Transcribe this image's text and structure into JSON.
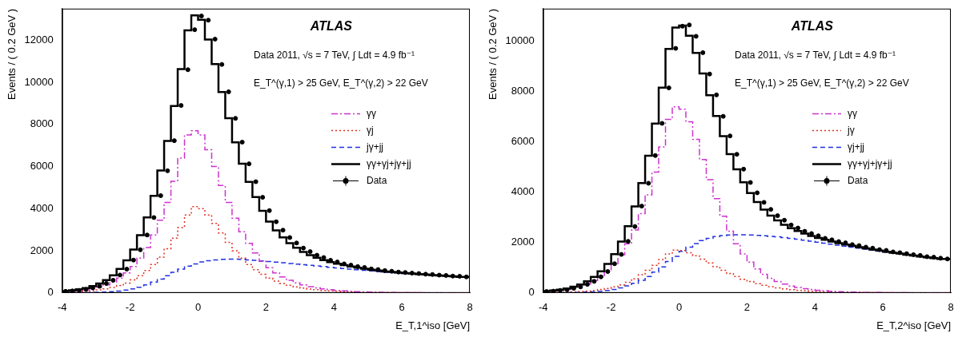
{
  "chart_data": [
    {
      "type": "histogram",
      "annotations": [
        "ATLAS",
        "Data 2011, √s = 7 TeV, ∫ Ldt = 4.9 fb⁻¹",
        "E_T^(γ,1) > 25 GeV, E_T^(γ,2) > 22 GeV"
      ],
      "x_label": "E_T,1^iso [GeV]",
      "y_label": "Events / ( 0.2 GeV )",
      "bins": [
        -4,
        -3.8,
        -3.6,
        -3.4,
        -3.2,
        -3,
        -2.8,
        -2.6,
        -2.4,
        -2.2,
        -2,
        -1.8,
        -1.6,
        -1.4,
        -1.2,
        -1,
        -0.8,
        -0.6,
        -0.4,
        -0.2,
        0,
        0.2,
        0.4,
        0.6,
        0.8,
        1,
        1.2,
        1.4,
        1.6,
        1.8,
        2,
        2.2,
        2.4,
        2.6,
        2.8,
        3,
        3.2,
        3.4,
        3.6,
        3.8,
        4,
        4.2,
        4.4,
        4.6,
        4.8,
        5,
        5.2,
        5.4,
        5.6,
        5.8,
        6,
        6.2,
        6.4,
        6.6,
        6.8,
        7,
        7.2,
        7.4,
        7.6,
        7.8,
        8
      ],
      "series": [
        {
          "name": "γγ",
          "color": "#cc33cc",
          "type": "step",
          "line_style": "dashdot",
          "values": [
            40,
            55,
            75,
            105,
            145,
            200,
            275,
            380,
            520,
            700,
            950,
            1250,
            1650,
            2150,
            2750,
            3450,
            4300,
            5300,
            6400,
            7500,
            7700,
            7500,
            6800,
            6000,
            5100,
            4300,
            3550,
            2900,
            2350,
            1900,
            1500,
            1200,
            950,
            760,
            600,
            480,
            380,
            300,
            240,
            190,
            150,
            120,
            95,
            75,
            60,
            48,
            38,
            30,
            24,
            19,
            15,
            12,
            10,
            8,
            6,
            5,
            4,
            3,
            3,
            2
          ]
        },
        {
          "name": "γj",
          "color": "#e03020",
          "type": "step",
          "line_style": "dotted",
          "values": [
            25,
            30,
            40,
            55,
            75,
            100,
            140,
            190,
            260,
            350,
            470,
            620,
            820,
            1060,
            1350,
            1700,
            2100,
            2600,
            3100,
            3700,
            4100,
            4000,
            3700,
            3300,
            2850,
            2400,
            2000,
            1650,
            1350,
            1100,
            880,
            700,
            560,
            450,
            360,
            290,
            230,
            185,
            150,
            120,
            95,
            78,
            63,
            50,
            40,
            32,
            26,
            21,
            17,
            14,
            11,
            9,
            7,
            6,
            5,
            4,
            3,
            3,
            2,
            2
          ]
        },
        {
          "name": "jγ+jj",
          "color": "#2030e0",
          "type": "step",
          "line_style": "dashed",
          "values": [
            5,
            6,
            8,
            10,
            14,
            20,
            28,
            40,
            60,
            90,
            130,
            190,
            270,
            380,
            510,
            660,
            820,
            980,
            1130,
            1270,
            1380,
            1470,
            1530,
            1570,
            1590,
            1600,
            1600,
            1590,
            1570,
            1550,
            1520,
            1490,
            1460,
            1430,
            1400,
            1370,
            1340,
            1310,
            1280,
            1250,
            1220,
            1190,
            1160,
            1130,
            1100,
            1070,
            1040,
            1010,
            980,
            960,
            940,
            920,
            900,
            880,
            860,
            840,
            820,
            800,
            780,
            760
          ]
        },
        {
          "name": "γγ+γj+jγ+jj",
          "color": "#000000",
          "type": "step",
          "line_style": "solid",
          "values": [
            70,
            91,
            123,
            170,
            234,
            320,
            443,
            610,
            840,
            1140,
            1550,
            2060,
            2740,
            3590,
            4610,
            5810,
            7220,
            8880,
            10630,
            12470,
            13180,
            12970,
            12030,
            10870,
            9540,
            8300,
            7150,
            6140,
            5270,
            4550,
            3900,
            3390,
            2970,
            2640,
            2360,
            2140,
            1950,
            1795,
            1670,
            1560,
            1465,
            1388,
            1318,
            1255,
            1200,
            1150,
            1104,
            1061,
            1021,
            993,
            966,
            941,
            917,
            894,
            871,
            849,
            827,
            806,
            785,
            764
          ]
        },
        {
          "name": "Data",
          "color": "#000000",
          "type": "scatter",
          "marker": "circle",
          "values": [
            75,
            95,
            120,
            165,
            240,
            315,
            450,
            600,
            850,
            1130,
            1560,
            2050,
            2750,
            3580,
            4620,
            5800,
            7230,
            8900,
            10600,
            12500,
            13150,
            12950,
            12050,
            10850,
            9550,
            8290,
            7160,
            6130,
            5280,
            4540,
            3910,
            3380,
            2980,
            2630,
            2370,
            2130,
            1960,
            1790,
            1680,
            1550,
            1470,
            1380,
            1320,
            1250,
            1210,
            1140,
            1110,
            1060,
            1030,
            990,
            970,
            940,
            920,
            890,
            875,
            845,
            830,
            800,
            790,
            760
          ]
        }
      ],
      "xlim": [
        -4,
        8
      ],
      "xticks": [
        -4,
        -2,
        0,
        2,
        4,
        6,
        8
      ],
      "ylim": [
        0,
        13500
      ],
      "yticks": [
        0,
        2000,
        4000,
        6000,
        8000,
        10000,
        12000
      ],
      "grid": false,
      "legend": "right"
    },
    {
      "type": "histogram",
      "annotations": [
        "ATLAS",
        "Data 2011, √s = 7 TeV, ∫ Ldt = 4.9 fb⁻¹",
        "E_T^(γ,1) > 25 GeV, E_T^(γ,2) > 22 GeV"
      ],
      "x_label": "E_T,2^iso [GeV]",
      "y_label": "Events / ( 0.2 GeV )",
      "bins": [
        -4,
        -3.8,
        -3.6,
        -3.4,
        -3.2,
        -3,
        -2.8,
        -2.6,
        -2.4,
        -2.2,
        -2,
        -1.8,
        -1.6,
        -1.4,
        -1.2,
        -1,
        -0.8,
        -0.6,
        -0.4,
        -0.2,
        0,
        0.2,
        0.4,
        0.6,
        0.8,
        1,
        1.2,
        1.4,
        1.6,
        1.8,
        2,
        2.2,
        2.4,
        2.6,
        2.8,
        3,
        3.2,
        3.4,
        3.6,
        3.8,
        4,
        4.2,
        4.4,
        4.6,
        4.8,
        5,
        5.2,
        5.4,
        5.6,
        5.8,
        6,
        6.2,
        6.4,
        6.6,
        6.8,
        7,
        7.2,
        7.4,
        7.6,
        7.8,
        8
      ],
      "series": [
        {
          "name": "γγ",
          "color": "#cc33cc",
          "type": "step",
          "line_style": "dashdot",
          "values": [
            40,
            55,
            75,
            100,
            140,
            190,
            260,
            360,
            490,
            660,
            880,
            1160,
            1520,
            1950,
            2500,
            3150,
            3900,
            4800,
            5800,
            6900,
            7400,
            7300,
            6800,
            6100,
            5300,
            4500,
            3750,
            3050,
            2450,
            1950,
            1550,
            1220,
            950,
            740,
            580,
            450,
            350,
            275,
            215,
            170,
            135,
            105,
            85,
            67,
            53,
            42,
            33,
            27,
            21,
            17,
            14,
            11,
            9,
            7,
            6,
            5,
            4,
            3,
            3,
            2
          ]
        },
        {
          "name": "jγ",
          "color": "#e03020",
          "type": "step",
          "line_style": "dotted",
          "values": [
            10,
            13,
            17,
            22,
            30,
            40,
            55,
            75,
            100,
            135,
            180,
            240,
            320,
            420,
            560,
            720,
            900,
            1100,
            1330,
            1550,
            1700,
            1680,
            1600,
            1480,
            1340,
            1190,
            1040,
            900,
            770,
            650,
            540,
            450,
            370,
            300,
            245,
            200,
            160,
            130,
            105,
            85,
            68,
            55,
            44,
            35,
            28,
            23,
            18,
            15,
            12,
            10,
            8,
            6,
            5,
            4,
            3,
            3,
            2,
            2,
            2,
            1
          ]
        },
        {
          "name": "γj+jj",
          "color": "#2030e0",
          "type": "step",
          "line_style": "dashed",
          "values": [
            3,
            4,
            5,
            7,
            10,
            14,
            20,
            30,
            45,
            65,
            95,
            140,
            200,
            280,
            380,
            500,
            650,
            830,
            1030,
            1250,
            1450,
            1650,
            1820,
            1960,
            2080,
            2170,
            2240,
            2280,
            2300,
            2310,
            2310,
            2300,
            2290,
            2270,
            2250,
            2230,
            2200,
            2170,
            2140,
            2100,
            2060,
            2020,
            1980,
            1940,
            1900,
            1860,
            1820,
            1780,
            1740,
            1700,
            1660,
            1620,
            1580,
            1550,
            1510,
            1480,
            1440,
            1410,
            1380,
            1350
          ]
        },
        {
          "name": "γγ+γj+jγ+jj",
          "color": "#000000",
          "type": "step",
          "line_style": "solid",
          "values": [
            53,
            72,
            97,
            129,
            180,
            244,
            335,
            465,
            635,
            860,
            1155,
            1540,
            2040,
            2650,
            3440,
            4370,
            5450,
            6730,
            8160,
            9700,
            10550,
            10630,
            10220,
            9540,
            8720,
            7860,
            7030,
            6230,
            5520,
            4910,
            4400,
            3970,
            3610,
            3310,
            3075,
            2880,
            2710,
            2575,
            2460,
            2355,
            2263,
            2180,
            2109,
            2042,
            1981,
            1925,
            1871,
            1822,
            1773,
            1727,
            1682,
            1637,
            1594,
            1561,
            1519,
            1488,
            1446,
            1415,
            1385,
            1353
          ]
        },
        {
          "name": "Data",
          "color": "#000000",
          "type": "scatter",
          "marker": "circle",
          "values": [
            55,
            70,
            100,
            125,
            185,
            240,
            340,
            460,
            640,
            850,
            1160,
            1530,
            2050,
            2640,
            3450,
            4360,
            5460,
            6740,
            8150,
            9720,
            10600,
            10650,
            10200,
            9550,
            8700,
            7870,
            7020,
            6240,
            5510,
            4920,
            4390,
            3980,
            3600,
            3320,
            3070,
            2890,
            2700,
            2580,
            2450,
            2360,
            2270,
            2170,
            2110,
            2040,
            1990,
            1920,
            1880,
            1820,
            1780,
            1720,
            1690,
            1630,
            1600,
            1560,
            1520,
            1490,
            1440,
            1420,
            1380,
            1350
          ]
        }
      ],
      "xlim": [
        -4,
        8
      ],
      "xticks": [
        -4,
        -2,
        0,
        2,
        4,
        6,
        8
      ],
      "ylim": [
        0,
        11300
      ],
      "yticks": [
        0,
        2000,
        4000,
        6000,
        8000,
        10000
      ],
      "grid": false,
      "legend": "right"
    }
  ]
}
